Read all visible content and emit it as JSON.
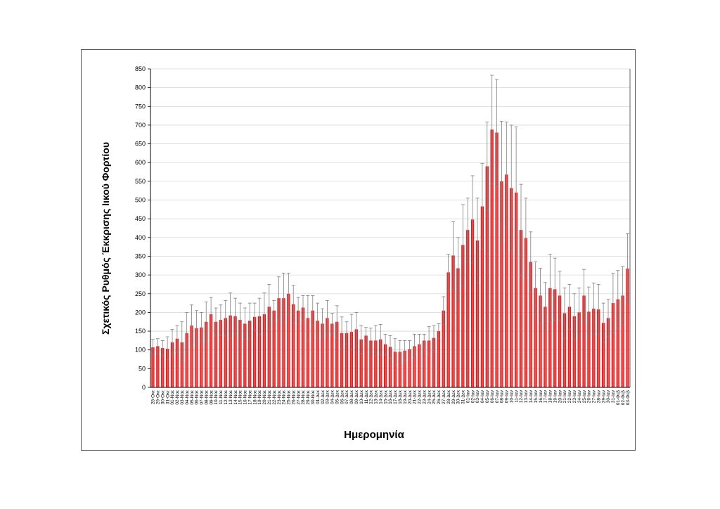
{
  "colors": {
    "bar": "#e60000",
    "bar_highlight": "#ff5a5a",
    "error_bar": "#7f7f7f",
    "grid": "#d9d9d9",
    "axis": "#000000",
    "frame": "#595959"
  },
  "chart_data": {
    "type": "bar",
    "title": "",
    "xlabel": "Ημερομηνία",
    "ylabel": "Σχετικός Ρυθμός Έκκρισης Ιικού Φορτίου",
    "ylim": [
      0,
      850
    ],
    "yticks": [
      0,
      50,
      100,
      150,
      200,
      250,
      300,
      350,
      400,
      450,
      500,
      550,
      600,
      650,
      700,
      750,
      800,
      850
    ],
    "grid": true,
    "legend": "none",
    "categories": [
      "28-Οκτ",
      "29-Οκτ",
      "30-Οκτ",
      "31-Οκτ",
      "01-Νοε",
      "02-Νοε",
      "03-Νοε",
      "04-Νοε",
      "05-Νοε",
      "06-Νοε",
      "07-Νοε",
      "08-Νοε",
      "09-Νοε",
      "10-Νοε",
      "11-Νοε",
      "12-Νοε",
      "13-Νοε",
      "14-Νοε",
      "15-Νοε",
      "16-Νοε",
      "17-Νοε",
      "18-Νοε",
      "19-Νοε",
      "20-Νοε",
      "21-Νοε",
      "22-Νοε",
      "23-Νοε",
      "24-Νοε",
      "25-Νοε",
      "26-Νοε",
      "27-Νοε",
      "28-Νοε",
      "29-Νοε",
      "30-Νοε",
      "01-Δεκ",
      "02-Δεκ",
      "03-Δεκ",
      "04-Δεκ",
      "05-Δεκ",
      "06-Δεκ",
      "07-Δεκ",
      "08-Δεκ",
      "09-Δεκ",
      "10-Δεκ",
      "11-Δεκ",
      "12-Δεκ",
      "13-Δεκ",
      "14-Δεκ",
      "15-Δεκ",
      "16-Δεκ",
      "17-Δεκ",
      "18-Δεκ",
      "19-Δεκ",
      "20-Δεκ",
      "21-Δεκ",
      "22-Δεκ",
      "23-Δεκ",
      "24-Δεκ",
      "25-Δεκ",
      "26-Δεκ",
      "27-Δεκ",
      "28-Δεκ",
      "29-Δεκ",
      "30-Δεκ",
      "31-Δεκ",
      "01-Ιαν",
      "02-Ιαν",
      "03-Ιαν",
      "04-Ιαν",
      "05-Ιαν",
      "06-Ιαν",
      "07-Ιαν",
      "08-Ιαν",
      "09-Ιαν",
      "10-Ιαν",
      "11-Ιαν",
      "12-Ιαν",
      "13-Ιαν",
      "14-Ιαν",
      "15-Ιαν",
      "16-Ιαν",
      "17-Ιαν",
      "18-Ιαν",
      "19-Ιαν",
      "20-Ιαν",
      "21-Ιαν",
      "22-Ιαν",
      "23-Ιαν",
      "24-Ιαν",
      "25-Ιαν",
      "26-Ιαν",
      "27-Ιαν",
      "28-Ιαν",
      "29-Ιαν",
      "30-Ιαν",
      "31-Ιαν",
      "01-Φεβ",
      "02-Φεβ",
      "03-Φεβ"
    ],
    "values": [
      107,
      110,
      105,
      103,
      120,
      130,
      120,
      145,
      165,
      158,
      160,
      175,
      195,
      175,
      180,
      185,
      192,
      190,
      180,
      170,
      178,
      188,
      190,
      195,
      215,
      205,
      238,
      238,
      250,
      222,
      205,
      213,
      185,
      205,
      178,
      170,
      185,
      170,
      175,
      145,
      145,
      148,
      155,
      128,
      138,
      125,
      125,
      128,
      115,
      108,
      95,
      95,
      98,
      102,
      110,
      115,
      125,
      125,
      132,
      150,
      205,
      307,
      352,
      318,
      380,
      420,
      448,
      392,
      483,
      590,
      688,
      680,
      550,
      568,
      532,
      520,
      420,
      398,
      335,
      265,
      245,
      215,
      265,
      262,
      245,
      198,
      215,
      190,
      200,
      245,
      202,
      210,
      208,
      172,
      185,
      225,
      235,
      245,
      317
    ],
    "error_upper": [
      128,
      130,
      125,
      135,
      155,
      165,
      175,
      200,
      220,
      205,
      200,
      228,
      240,
      212,
      220,
      232,
      252,
      238,
      225,
      212,
      225,
      225,
      238,
      252,
      275,
      232,
      295,
      305,
      305,
      272,
      240,
      245,
      245,
      245,
      225,
      210,
      232,
      198,
      218,
      188,
      175,
      195,
      200,
      165,
      160,
      158,
      165,
      168,
      142,
      138,
      130,
      125,
      125,
      125,
      142,
      142,
      142,
      162,
      165,
      170,
      242,
      355,
      442,
      400,
      488,
      505,
      565,
      505,
      598,
      708,
      833,
      822,
      710,
      708,
      700,
      695,
      542,
      505,
      415,
      335,
      318,
      280,
      355,
      345,
      310,
      265,
      275,
      250,
      265,
      315,
      268,
      278,
      275,
      225,
      235,
      305,
      312,
      322,
      410
    ],
    "error_lower": [
      85,
      90,
      85,
      75,
      90,
      95,
      72,
      95,
      110,
      112,
      122,
      122,
      150,
      138,
      140,
      138,
      132,
      142,
      135,
      128,
      131,
      151,
      142,
      138,
      155,
      178,
      182,
      171,
      195,
      172,
      170,
      181,
      125,
      165,
      131,
      130,
      138,
      142,
      132,
      102,
      115,
      101,
      110,
      91,
      116,
      92,
      85,
      88,
      88,
      78,
      60,
      65,
      71,
      79,
      78,
      88,
      108,
      88,
      99,
      130,
      168,
      259,
      262,
      236,
      272,
      335,
      331,
      279,
      368,
      472,
      543,
      538,
      390,
      428,
      364,
      345,
      298,
      291,
      255,
      195,
      172,
      150,
      175,
      179,
      180,
      131,
      155,
      130,
      135,
      175,
      136,
      142,
      141,
      119,
      135,
      145,
      158,
      168,
      224
    ]
  }
}
